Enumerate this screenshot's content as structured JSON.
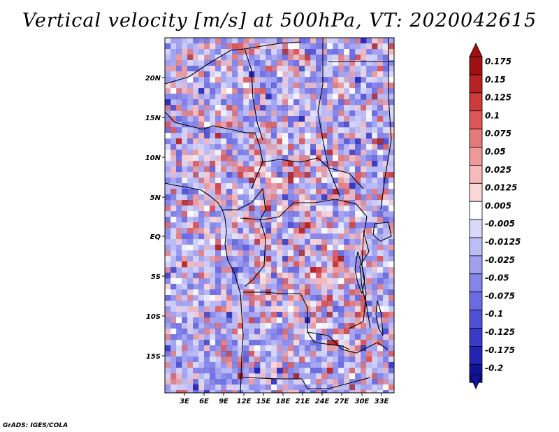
{
  "title": "Vertical velocity [m/s] at 500hPa, VT: 2020042615",
  "credit": "GrADS: IGES/COLA",
  "map": {
    "region": "Central Africa",
    "lat_ticks": [
      "20N",
      "15N",
      "10N",
      "5N",
      "EQ",
      "5S",
      "10S",
      "15S"
    ],
    "lon_ticks": [
      "3E",
      "6E",
      "9E",
      "12E",
      "15E",
      "18E",
      "21E",
      "24E",
      "27E",
      "30E",
      "33E"
    ]
  },
  "colorbar": {
    "levels": [
      "0.175",
      "0.15",
      "0.125",
      "0.1",
      "0.075",
      "0.05",
      "0.025",
      "0.0125",
      "0.005",
      "-0.005",
      "-0.0125",
      "-0.025",
      "-0.05",
      "-0.075",
      "-0.1",
      "-0.125",
      "-0.175",
      "-0.2"
    ],
    "colors": [
      "#a01010",
      "#b82222",
      "#cc3a3a",
      "#dc5656",
      "#e67a7a",
      "#ef9a9a",
      "#f6baba",
      "#fbd6d6",
      "#ffffff",
      "#d8d8fa",
      "#bcbcf6",
      "#a0a0f0",
      "#8484ea",
      "#6a6ae2",
      "#5050d6",
      "#3a3ac6",
      "#2424b2",
      "#121298"
    ],
    "top_color": "#a01010",
    "bottom_color": "#121298"
  }
}
